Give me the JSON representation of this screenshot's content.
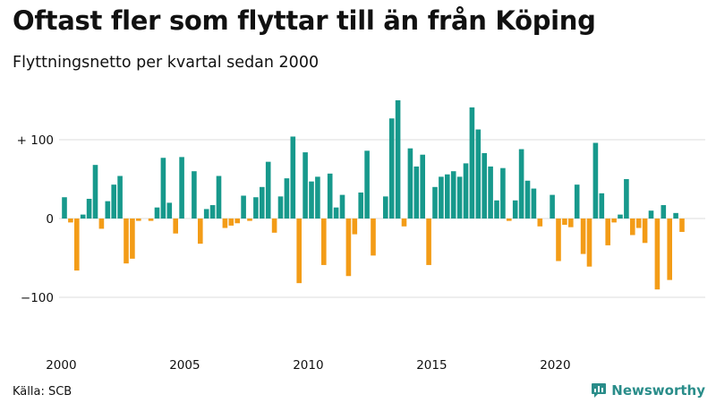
{
  "title": "Oftast fler som flyttar till än från Köping",
  "subtitle": "Flyttningsnetto per kvartal sedan 2000",
  "source": "Källa: SCB",
  "brand": "Newsworthy",
  "colors": {
    "positive": "#17998c",
    "negative": "#f39c17",
    "grid": "#dddddd",
    "brand": "#2a8d8a"
  },
  "chart_data": {
    "type": "bar",
    "start": "2000 Q1",
    "x_tick_labels": [
      "2000",
      "2005",
      "2010",
      "2015",
      "2020"
    ],
    "y_tick_values": [
      100,
      0,
      -100
    ],
    "y_tick_labels": [
      "+ 100",
      "0",
      "−100"
    ],
    "ylim": [
      -125,
      175
    ],
    "grid": true,
    "values": [
      27,
      -5,
      -66,
      5,
      25,
      68,
      -13,
      22,
      43,
      54,
      -57,
      -51,
      -3,
      0,
      -3,
      14,
      77,
      20,
      -19,
      78,
      0,
      60,
      -32,
      12,
      17,
      54,
      -12,
      -9,
      -6,
      29,
      -3,
      27,
      40,
      72,
      -18,
      28,
      51,
      104,
      -82,
      84,
      47,
      53,
      -59,
      57,
      14,
      30,
      -73,
      -20,
      33,
      86,
      -47,
      0,
      28,
      127,
      150,
      -10,
      89,
      66,
      81,
      -59,
      40,
      53,
      56,
      60,
      53,
      70,
      141,
      113,
      83,
      66,
      23,
      64,
      -3,
      23,
      88,
      48,
      38,
      -10,
      0,
      30,
      -54,
      -8,
      -11,
      43,
      -45,
      -61,
      96,
      32,
      -34,
      -5,
      5,
      50,
      -21,
      -12,
      -31,
      10,
      -90,
      17,
      -78,
      7,
      -17
    ]
  }
}
